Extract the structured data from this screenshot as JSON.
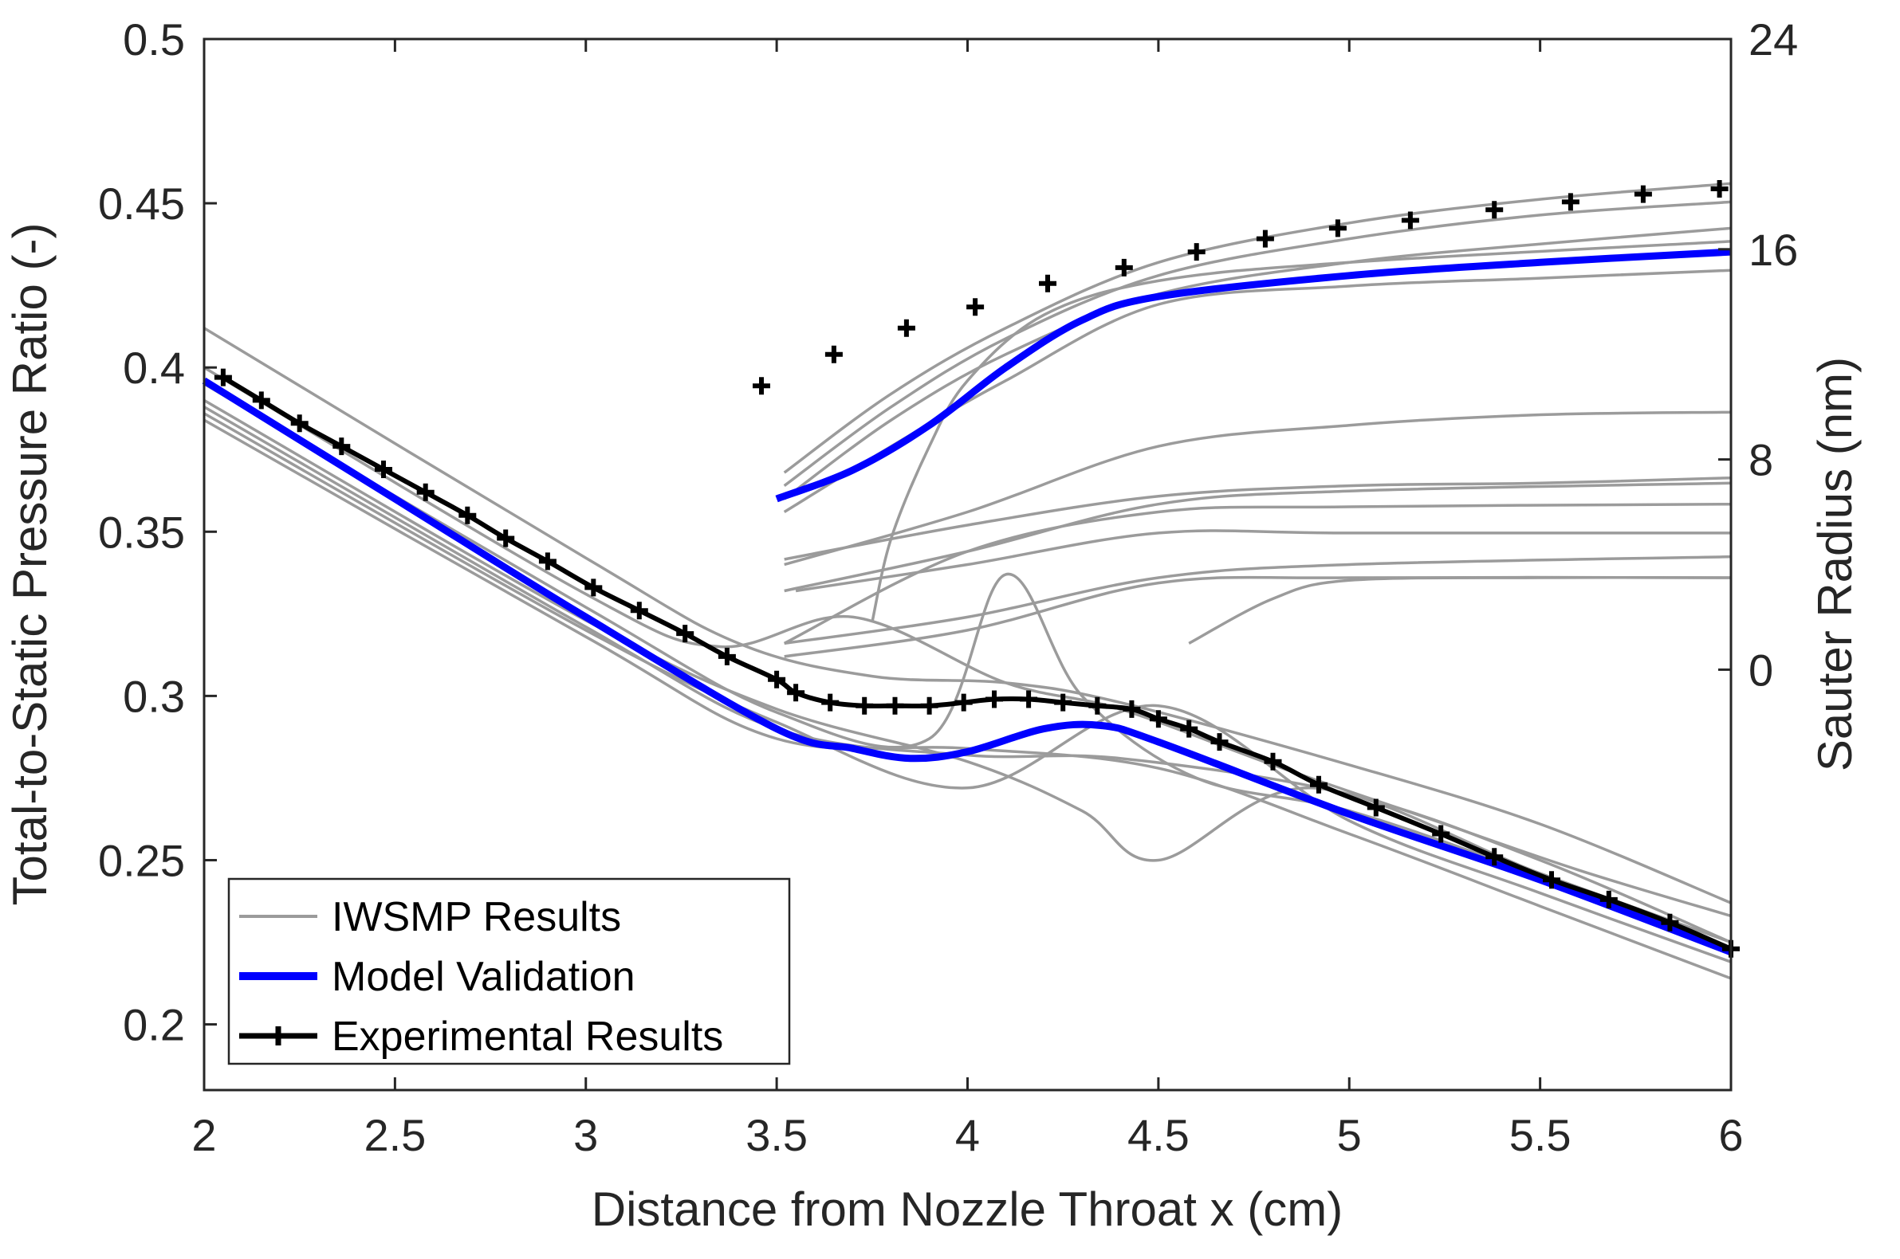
{
  "chart_data": {
    "type": "line",
    "title": "",
    "xlabel": "Distance from Nozzle Throat x (cm)",
    "ylabel_left": "Total-to-Static Pressure Ratio (-)",
    "ylabel_right": "Sauter Radius (nm)",
    "xlim": [
      2,
      6
    ],
    "ylim_left": [
      0.18,
      0.5
    ],
    "ylim_right": [
      -16,
      24
    ],
    "xticks": [
      "2",
      "2.5",
      "3",
      "3.5",
      "4",
      "4.5",
      "5",
      "5.5",
      "6"
    ],
    "yticks_left": [
      "0.2",
      "0.25",
      "0.3",
      "0.35",
      "0.4",
      "0.45",
      "0.5"
    ],
    "yticks_right": [
      "0",
      "8",
      "16",
      "24"
    ],
    "grid": false,
    "legend_position": "bottom-left",
    "legend": [
      {
        "label": "IWSMP Results",
        "color": "#9b9b9b",
        "marker": ""
      },
      {
        "label": "Model Validation",
        "color": "#0000ff",
        "marker": ""
      },
      {
        "label": "Experimental Results",
        "color": "#000000",
        "marker": "+"
      }
    ],
    "pressure_series": {
      "iwsmp": [
        {
          "name": "IWSMP run 1",
          "x": [
            2.0,
            3.0,
            3.4,
            3.75,
            4.1,
            4.4,
            5.0,
            5.5,
            6.0
          ],
          "y": [
            0.412,
            0.342,
            0.316,
            0.306,
            0.304,
            0.298,
            0.279,
            0.261,
            0.237
          ]
        },
        {
          "name": "IWSMP run 2",
          "x": [
            2.0,
            3.0,
            3.35,
            3.7,
            4.1,
            4.4,
            4.8,
            5.2,
            5.6,
            6.0
          ],
          "y": [
            0.4,
            0.331,
            0.315,
            0.324,
            0.304,
            0.296,
            0.279,
            0.263,
            0.247,
            0.233
          ]
        },
        {
          "name": "IWSMP run 3",
          "x": [
            2.0,
            3.0,
            3.5,
            3.9,
            4.1,
            4.3,
            4.6,
            5.0,
            5.5,
            6.0
          ],
          "y": [
            0.395,
            0.327,
            0.295,
            0.287,
            0.337,
            0.3,
            0.275,
            0.265,
            0.245,
            0.222
          ]
        },
        {
          "name": "IWSMP run 4",
          "x": [
            2.0,
            3.0,
            3.5,
            4.0,
            4.3,
            4.5,
            4.9,
            5.5,
            6.0
          ],
          "y": [
            0.39,
            0.323,
            0.296,
            0.28,
            0.265,
            0.25,
            0.272,
            0.246,
            0.225
          ]
        },
        {
          "name": "IWSMP run 5",
          "x": [
            2.0,
            3.0,
            3.5,
            4.0,
            4.5,
            5.0,
            5.5,
            6.0
          ],
          "y": [
            0.386,
            0.32,
            0.292,
            0.272,
            0.297,
            0.262,
            0.24,
            0.219
          ]
        },
        {
          "name": "IWSMP run 6",
          "x": [
            2.0,
            3.0,
            3.5,
            4.0,
            4.4,
            5.0,
            5.5,
            6.0
          ],
          "y": [
            0.388,
            0.321,
            0.29,
            0.282,
            0.281,
            0.27,
            0.25,
            0.225
          ]
        },
        {
          "name": "IWSMP run 7",
          "x": [
            2.0,
            3.0,
            3.5,
            4.0,
            4.5,
            5.0,
            5.5,
            6.0
          ],
          "y": [
            0.384,
            0.318,
            0.287,
            0.284,
            0.278,
            0.258,
            0.236,
            0.214
          ]
        }
      ],
      "model_validation": {
        "x": [
          2.0,
          2.5,
          3.0,
          3.5,
          3.7,
          3.85,
          4.0,
          4.2,
          4.35,
          4.5,
          5.0,
          5.5,
          6.0
        ],
        "y": [
          0.396,
          0.36,
          0.324,
          0.29,
          0.284,
          0.281,
          0.283,
          0.29,
          0.291,
          0.286,
          0.264,
          0.244,
          0.222
        ]
      },
      "experimental": {
        "x": [
          2.05,
          2.15,
          2.25,
          2.36,
          2.47,
          2.58,
          2.69,
          2.79,
          2.9,
          3.02,
          3.14,
          3.26,
          3.37,
          3.5,
          3.55,
          3.64,
          3.73,
          3.81,
          3.9,
          3.99,
          4.07,
          4.16,
          4.25,
          4.34,
          4.43,
          4.5,
          4.58,
          4.66,
          4.8,
          4.92,
          5.07,
          5.24,
          5.38,
          5.53,
          5.68,
          5.84,
          6.0
        ],
        "y": [
          0.397,
          0.39,
          0.383,
          0.376,
          0.369,
          0.362,
          0.355,
          0.348,
          0.341,
          0.333,
          0.326,
          0.319,
          0.312,
          0.305,
          0.301,
          0.298,
          0.297,
          0.297,
          0.297,
          0.298,
          0.299,
          0.299,
          0.298,
          0.297,
          0.296,
          0.293,
          0.29,
          0.286,
          0.28,
          0.273,
          0.266,
          0.258,
          0.251,
          0.244,
          0.238,
          0.231,
          0.223
        ]
      }
    },
    "sauter_series": {
      "iwsmp": [
        {
          "name": "IWSMP radius 1",
          "x": [
            3.52,
            3.8,
            4.1,
            4.5,
            5.0,
            5.5,
            6.0
          ],
          "y": [
            7.5,
            10.5,
            13.0,
            15.5,
            17.0,
            17.9,
            18.5
          ]
        },
        {
          "name": "IWSMP radius 2",
          "x": [
            3.52,
            3.8,
            4.1,
            4.5,
            5.0,
            5.5,
            6.0
          ],
          "y": [
            7.0,
            10.0,
            12.6,
            15.0,
            16.4,
            17.3,
            17.8
          ]
        },
        {
          "name": "IWSMP radius 3",
          "x": [
            3.52,
            3.8,
            4.1,
            4.5,
            5.0,
            5.5,
            6.0
          ],
          "y": [
            6.5,
            9.5,
            12.0,
            14.3,
            15.5,
            16.2,
            16.8
          ]
        },
        {
          "name": "IWSMP radius 4",
          "x": [
            3.52,
            3.8,
            4.1,
            4.5,
            5.0,
            5.5,
            6.0
          ],
          "y": [
            6.0,
            8.5,
            11.0,
            13.9,
            14.6,
            14.9,
            15.2
          ]
        },
        {
          "name": "IWSMP radius 5",
          "x": [
            3.75,
            3.8,
            3.9,
            4.0,
            4.2,
            4.5,
            5.0,
            6.0
          ],
          "y": [
            1.8,
            5.0,
            8.5,
            11.0,
            13.5,
            14.8,
            15.5,
            16.3
          ]
        },
        {
          "name": "IWSMP radius 6",
          "x": [
            3.52,
            4.0,
            4.5,
            5.0,
            5.5,
            6.0
          ],
          "y": [
            4.0,
            6.0,
            8.5,
            9.3,
            9.7,
            9.8
          ]
        },
        {
          "name": "IWSMP radius 7",
          "x": [
            3.52,
            4.0,
            4.5,
            5.0,
            5.5,
            6.0
          ],
          "y": [
            4.2,
            5.5,
            6.6,
            7.0,
            7.1,
            7.3
          ]
        },
        {
          "name": "IWSMP radius 8",
          "x": [
            3.52,
            4.0,
            4.5,
            5.0,
            6.0
          ],
          "y": [
            3.0,
            4.5,
            6.3,
            6.8,
            7.1
          ]
        },
        {
          "name": "IWSMP radius 9",
          "x": [
            3.52,
            4.0,
            4.5,
            5.0,
            6.0
          ],
          "y": [
            1.0,
            4.5,
            6.0,
            6.2,
            6.3
          ]
        },
        {
          "name": "IWSMP radius 10",
          "x": [
            3.55,
            4.0,
            4.5,
            5.0,
            6.0
          ],
          "y": [
            3.0,
            4.0,
            5.2,
            5.2,
            5.2
          ]
        },
        {
          "name": "IWSMP radius 11",
          "x": [
            3.52,
            4.0,
            4.5,
            5.0,
            6.0
          ],
          "y": [
            1.0,
            2.0,
            3.5,
            4.0,
            4.3
          ]
        },
        {
          "name": "IWSMP radius 12",
          "x": [
            3.52,
            4.0,
            4.5,
            5.0,
            6.0
          ],
          "y": [
            0.5,
            1.5,
            3.3,
            3.5,
            3.5
          ]
        },
        {
          "name": "IWSMP radius 13",
          "x": [
            4.58,
            4.8,
            5.0,
            5.5,
            6.0
          ],
          "y": [
            1.0,
            2.7,
            3.4,
            3.5,
            3.5
          ]
        }
      ],
      "model_validation": {
        "x": [
          3.5,
          3.7,
          3.9,
          4.1,
          4.3,
          4.5,
          5.0,
          5.5,
          6.0
        ],
        "y": [
          6.5,
          7.6,
          9.3,
          11.5,
          13.3,
          14.2,
          15.0,
          15.5,
          15.9
        ]
      },
      "experimental": {
        "x": [
          3.46,
          3.65,
          3.84,
          4.02,
          4.21,
          4.41,
          4.6,
          4.78,
          4.97,
          5.16,
          5.38,
          5.58,
          5.77,
          5.97
        ],
        "y": [
          10.8,
          12.0,
          13.0,
          13.8,
          14.7,
          15.3,
          15.9,
          16.4,
          16.8,
          17.1,
          17.5,
          17.8,
          18.1,
          18.3
        ]
      }
    }
  }
}
